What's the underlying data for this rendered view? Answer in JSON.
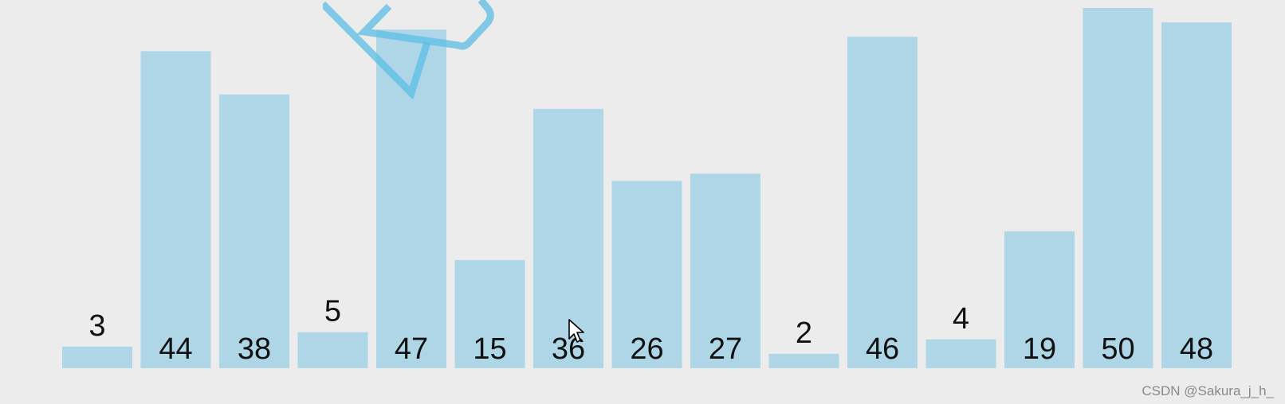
{
  "chart_data": {
    "type": "bar",
    "categories": [
      "3",
      "44",
      "38",
      "5",
      "47",
      "15",
      "36",
      "26",
      "27",
      "2",
      "46",
      "4",
      "19",
      "50",
      "48"
    ],
    "values": [
      3,
      44,
      38,
      5,
      47,
      15,
      36,
      26,
      27,
      2,
      46,
      4,
      19,
      50,
      48
    ],
    "ylim": [
      0,
      50
    ],
    "title": "",
    "xlabel": "",
    "ylabel": "",
    "bar_color": "#afd6e7",
    "background": "#ececec"
  },
  "watermark": "CSDN @Sakura_j_h_",
  "icons": {
    "logo": "checkbox-logo-icon",
    "cursor": "mouse-pointer-icon"
  },
  "colors": {
    "logo": "#5bbde6"
  }
}
